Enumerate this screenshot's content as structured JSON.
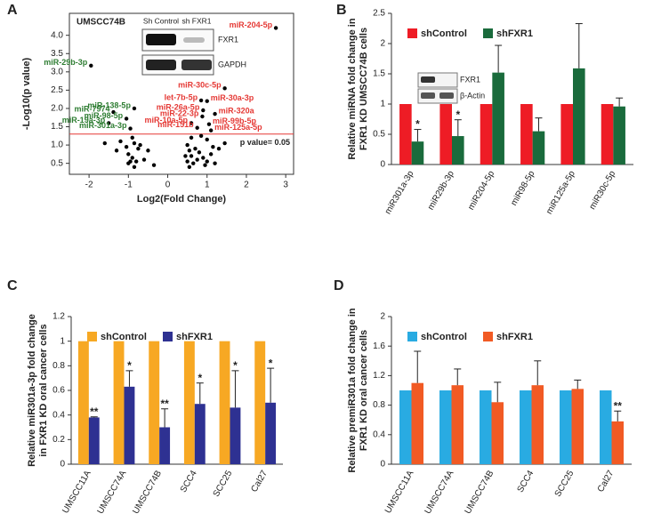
{
  "chart_data": [
    {
      "type": "scatter",
      "panel": "A",
      "title": "UMSCC74B",
      "xlabel": "Log2(Fold Change)",
      "ylabel": "-Log10(p value)",
      "xlim": [
        -2.5,
        3.2
      ],
      "ylim": [
        0.2,
        4.6
      ],
      "xticks": [
        -2,
        -1,
        0,
        1,
        2,
        3
      ],
      "yticks": [
        0.5,
        {
          "value": 1,
          "label": "1.0"
        },
        1.5,
        {
          "value": 2,
          "label": "2.0"
        },
        2.5,
        {
          "value": 3,
          "label": "3.0"
        },
        3.5,
        {
          "value": 4,
          "label": "4.0"
        }
      ],
      "threshold": {
        "value": 1.3,
        "label": "p value= 0.05",
        "color": "#e53935"
      },
      "inset": {
        "columns": [
          "Sh Control",
          "sh FXR1"
        ],
        "rows": [
          "FXR1",
          "GAPDH"
        ]
      },
      "series": [
        {
          "color": "#2e7d32",
          "x": [
            -1.95,
            -1.38,
            -0.85,
            -1.05,
            -1.5,
            -0.95
          ],
          "y": [
            3.17,
            1.9,
            2.0,
            1.72,
            1.6,
            1.45
          ],
          "labels": [
            "miR-29b-3p",
            "miR-7974",
            "miR-138-5p",
            "miR-98-5p",
            "miR-19a-3p",
            "miR-301a-3p"
          ]
        },
        {
          "color": "#e53935",
          "x": [
            2.75,
            1.45,
            0.85,
            1.0,
            0.9,
            0.88,
            1.2,
            0.6,
            1.05,
            0.75,
            1.1
          ],
          "y": [
            4.2,
            2.55,
            2.22,
            2.2,
            1.95,
            1.78,
            1.85,
            1.6,
            1.57,
            1.47,
            1.4
          ],
          "labels": [
            "miR-204-5p",
            "miR-30c-5p",
            "let-7b-5p",
            "miR-30a-3p",
            "miR-26a-5p",
            "miR-22-3p",
            "miR-320a",
            "miR-10a-5p",
            "miR-99b-5p",
            "miR-151b",
            "miR-125a-5p"
          ]
        },
        {
          "color": "#000000",
          "x": [
            -1.2,
            -1.05,
            -0.9,
            -0.85,
            -0.75,
            -1.3,
            -1.0,
            -0.9,
            -0.8,
            -0.6,
            -0.5,
            -1.0,
            -0.85,
            -0.35,
            -0.7,
            -1.6,
            -0.95,
            0.5,
            0.55,
            0.6,
            0.5,
            0.65,
            0.75,
            0.8,
            0.9,
            1.0,
            1.1,
            1.2,
            0.95,
            0.55,
            0.7,
            1.3,
            1.45,
            1.0,
            0.6,
            0.85,
            1.15,
            0.45
          ],
          "y": [
            1.1,
            0.95,
            1.2,
            1.05,
            0.9,
            0.85,
            0.75,
            0.65,
            0.55,
            0.6,
            0.85,
            0.5,
            0.4,
            0.45,
            1.0,
            1.05,
            0.55,
            1.0,
            0.85,
            0.7,
            0.55,
            0.5,
            0.6,
            0.8,
            0.65,
            0.55,
            0.75,
            0.5,
            0.45,
            0.4,
            0.9,
            0.9,
            1.05,
            1.15,
            1.2,
            1.25,
            0.95,
            0.7
          ]
        }
      ]
    },
    {
      "type": "bar",
      "panel": "B",
      "ylabel": [
        "Relative miRNA fold change in",
        "FXR1 KD UMSCC74B cells"
      ],
      "categories": [
        "miR301a-3p",
        "miR29b-3p",
        "miR204-5p",
        "miR98-5p",
        "miR125a-5p",
        "miR30c-5p"
      ],
      "ylim": [
        0,
        2.5
      ],
      "yticks": [
        0,
        0.5,
        1,
        1.5,
        2,
        2.5
      ],
      "inset": {
        "rows": [
          "FXR1",
          "β-Actin"
        ]
      },
      "significance": [
        "*",
        "*",
        null,
        null,
        null,
        null
      ],
      "series": [
        {
          "name": "shControl",
          "color": "#ee1c25",
          "values": [
            1,
            1,
            1,
            1,
            1,
            1
          ]
        },
        {
          "name": "shFXR1",
          "color": "#1a6b3c",
          "values": [
            0.38,
            0.47,
            1.52,
            0.55,
            1.59,
            0.96
          ],
          "errors": [
            0.2,
            0.27,
            0.45,
            0.22,
            0.74,
            0.14
          ]
        }
      ]
    },
    {
      "type": "bar",
      "panel": "C",
      "ylabel": [
        "Relative miR301a-3p fold change",
        "in FXR1 KD oral cancer cells"
      ],
      "categories": [
        "UMSCC11A",
        "UMSCC74A",
        "UMSCC74B",
        "SCC4",
        "SCC25",
        "Cal27"
      ],
      "ylim": [
        0,
        1.2
      ],
      "yticks": [
        0,
        0.2,
        0.4,
        0.6,
        0.8,
        1,
        1.2
      ],
      "significance": [
        "**",
        "*",
        "**",
        "*",
        "*",
        "*"
      ],
      "series": [
        {
          "name": "shControl",
          "color": "#f7a823",
          "values": [
            1,
            1,
            1,
            1,
            1,
            1
          ]
        },
        {
          "name": "shFXR1",
          "color": "#2e3192",
          "values": [
            0.38,
            0.63,
            0.3,
            0.49,
            0.46,
            0.5
          ],
          "errors": [
            0.005,
            0.13,
            0.15,
            0.17,
            0.3,
            0.28
          ]
        }
      ]
    },
    {
      "type": "bar",
      "panel": "D",
      "ylabel": [
        "Relative premiR301a fold change in",
        "FXR1 KD oral cancer cells"
      ],
      "categories": [
        "UMSCC11A",
        "UMSCC74A",
        "UMSCC74B",
        "SCC4",
        "SCC25",
        "Cal27"
      ],
      "ylim": [
        0,
        2
      ],
      "yticks": [
        0,
        0.4,
        0.8,
        1.2,
        1.6,
        2
      ],
      "significance": [
        null,
        null,
        null,
        null,
        null,
        "**"
      ],
      "series": [
        {
          "name": "shControl",
          "color": "#29abe2",
          "values": [
            1,
            1,
            1,
            1,
            1,
            1
          ]
        },
        {
          "name": "shFXR1",
          "color": "#f15a24",
          "values": [
            1.1,
            1.07,
            0.84,
            1.07,
            1.02,
            0.58
          ],
          "errors": [
            0.43,
            0.22,
            0.27,
            0.33,
            0.12,
            0.14
          ]
        }
      ]
    }
  ]
}
